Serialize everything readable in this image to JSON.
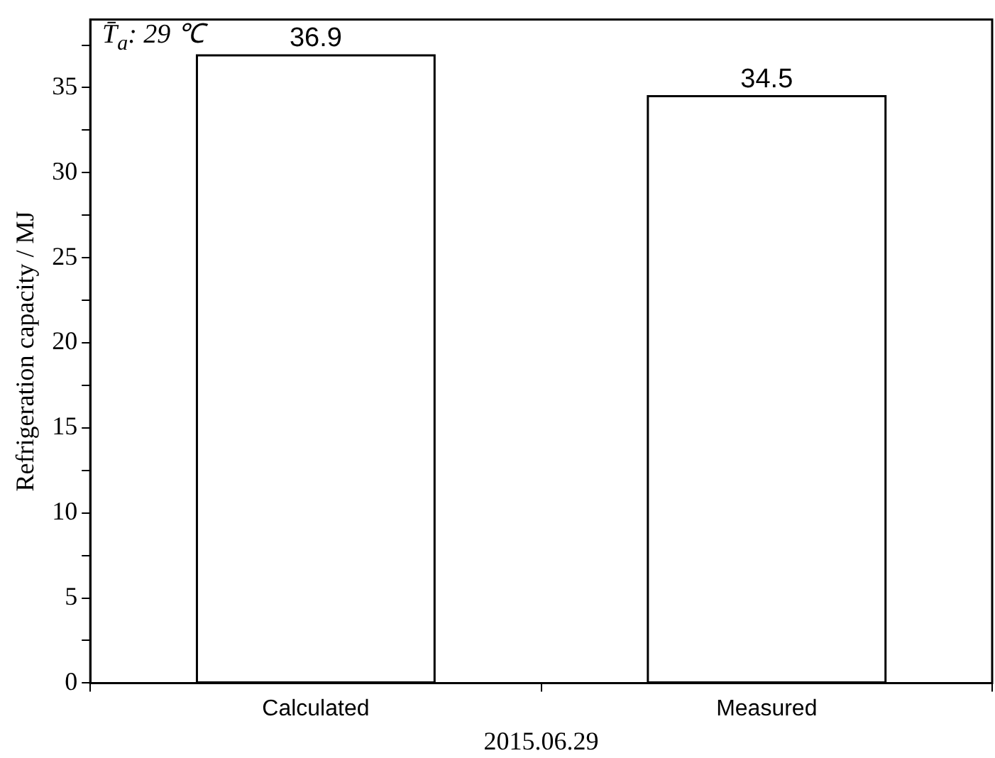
{
  "chart_data": {
    "type": "bar",
    "xlabel": "2015.06.29",
    "ylabel": "Refrigeration capacity / MJ",
    "categories": [
      "Calculated",
      "Measured"
    ],
    "values": [
      36.9,
      34.5
    ],
    "color": "#000000",
    "ylim": [
      0,
      39
    ],
    "yticks": [
      0,
      {
        "value": 2.5,
        "label": null
      },
      5,
      {
        "value": 7.5,
        "label": null
      },
      10,
      {
        "value": 12.5,
        "label": null
      },
      15,
      {
        "value": 17.5,
        "label": null
      },
      20,
      {
        "value": 22.5,
        "label": null
      },
      25,
      {
        "value": 27.5,
        "label": null
      },
      30,
      {
        "value": 32.5,
        "label": null
      },
      35,
      {
        "value": 37.5,
        "label": null
      }
    ],
    "data_labels": true,
    "grid": false,
    "legend": false,
    "annotations": [
      "T̄$_{a}$: 29 ℃"
    ]
  }
}
